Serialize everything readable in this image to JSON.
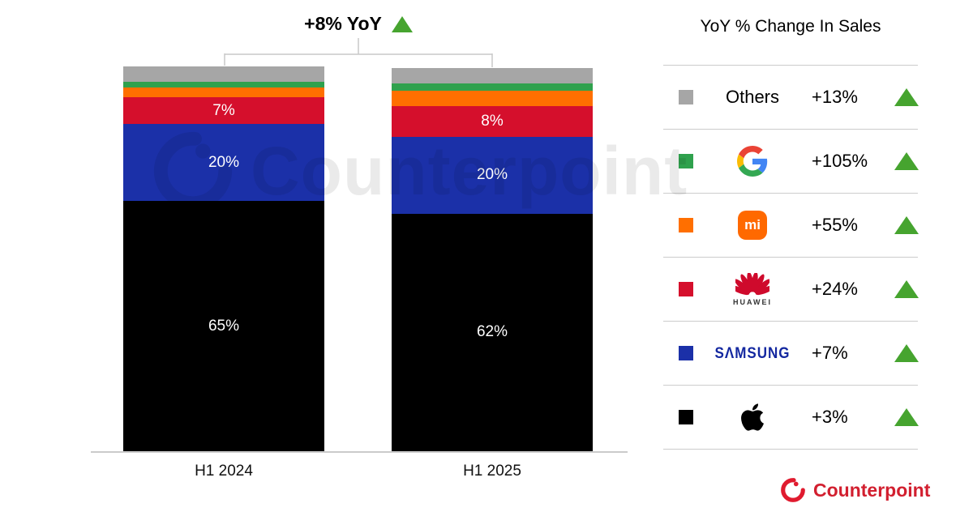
{
  "header": {
    "annotation": "+8% YoY"
  },
  "chart_data": {
    "type": "bar",
    "stacked": true,
    "title": "+8% YoY (total sales change, H1 2024 to H1 2025)",
    "units": "% share of sales",
    "categories": [
      "H1 2024",
      "H1 2025"
    ],
    "series": [
      {
        "name": "Others",
        "color": "#a6a6a6",
        "values": [
          4,
          4
        ],
        "data_labels": [
          "",
          ""
        ]
      },
      {
        "name": "Google",
        "color": "#2fa14d",
        "values": [
          1.5,
          2
        ],
        "data_labels": [
          "",
          ""
        ]
      },
      {
        "name": "Xiaomi",
        "color": "#ff6f00",
        "values": [
          2.5,
          4
        ],
        "data_labels": [
          "",
          ""
        ]
      },
      {
        "name": "Huawei",
        "color": "#d50f2c",
        "values": [
          7,
          8
        ],
        "data_labels": [
          "7%",
          "8%"
        ]
      },
      {
        "name": "Samsung",
        "color": "#1b30a8",
        "values": [
          20,
          20
        ],
        "data_labels": [
          "20%",
          "20%"
        ]
      },
      {
        "name": "Apple",
        "color": "#000000",
        "values": [
          65,
          62
        ],
        "data_labels": [
          "65%",
          "62%"
        ]
      }
    ],
    "legend_position": "right",
    "axis_labels_shown": "categories only"
  },
  "legend": {
    "title": "YoY % Change In Sales",
    "rows": [
      {
        "brand": "Others",
        "swatch_color": "#a6a6a6",
        "change": "+13%",
        "direction": "up"
      },
      {
        "brand": "Google",
        "swatch_color": "#2fa14d",
        "change": "+105%",
        "direction": "up"
      },
      {
        "brand": "Xiaomi",
        "swatch_color": "#ff6f00",
        "change": "+55%",
        "direction": "up",
        "badge_text": "mi"
      },
      {
        "brand": "Huawei",
        "swatch_color": "#d50f2c",
        "change": "+24%",
        "direction": "up",
        "wordmark": "HUAWEI"
      },
      {
        "brand": "Samsung",
        "swatch_color": "#1b30a8",
        "change": "+7%",
        "direction": "up",
        "wordmark": "SΛMSUNG"
      },
      {
        "brand": "Apple",
        "swatch_color": "#000000",
        "change": "+3%",
        "direction": "up"
      }
    ]
  },
  "watermark": {
    "text": "Counterpoint"
  },
  "footer": {
    "brand": "Counterpoint",
    "brand_color": "#d21f2f"
  },
  "colors": {
    "up_triangle": "#46a42f",
    "separator": "#cccccc",
    "bar_label": "#ffffff",
    "bracket": "#c9c9c9"
  }
}
